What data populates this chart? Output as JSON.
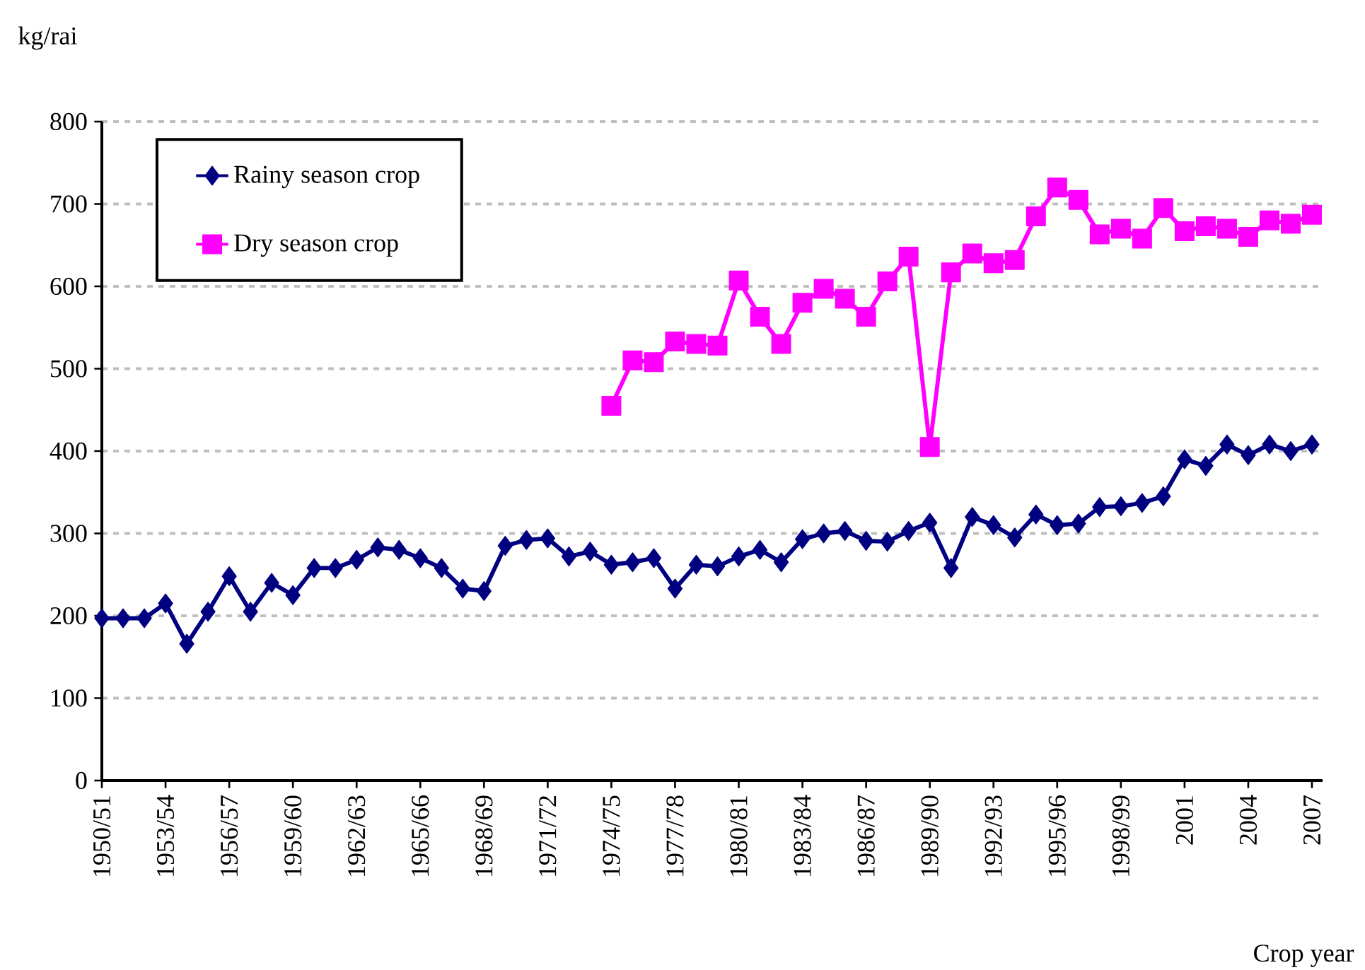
{
  "chart_data": {
    "type": "line",
    "ylabel": "kg/rai",
    "xlabel": "Crop year",
    "categories": [
      "1950/51",
      null,
      null,
      "1953/54",
      null,
      null,
      "1956/57",
      null,
      null,
      "1959/60",
      null,
      null,
      "1962/63",
      null,
      null,
      "1965/66",
      null,
      null,
      "1968/69",
      null,
      null,
      "1971/72",
      null,
      null,
      "1974/75",
      null,
      null,
      "1977/78",
      null,
      null,
      "1980/81",
      null,
      null,
      "1983/84",
      null,
      null,
      "1986/87",
      null,
      null,
      "1989/90",
      null,
      null,
      "1992/93",
      null,
      null,
      "1995/96",
      null,
      null,
      "1998/99",
      null,
      null,
      "2001",
      null,
      null,
      "2004",
      null,
      null,
      "2007"
    ],
    "series": [
      {
        "name": "Rainy season crop",
        "color": "#000080",
        "marker": "diamond",
        "values": [
          197,
          197,
          197,
          215,
          166,
          205,
          248,
          205,
          240,
          225,
          258,
          258,
          268,
          283,
          280,
          270,
          258,
          233,
          230,
          285,
          292,
          294,
          272,
          278,
          262,
          265,
          270,
          233,
          262,
          260,
          272,
          280,
          265,
          293,
          300,
          303,
          291,
          290,
          303,
          313,
          258,
          320,
          310,
          295,
          323,
          310,
          312,
          332,
          333,
          337,
          345,
          390,
          382,
          408,
          395,
          408,
          400,
          408
        ]
      },
      {
        "name": "Dry season crop",
        "color": "#ff00ff",
        "marker": "square",
        "values": [
          null,
          null,
          null,
          null,
          null,
          null,
          null,
          null,
          null,
          null,
          null,
          null,
          null,
          null,
          null,
          null,
          null,
          null,
          null,
          null,
          null,
          null,
          null,
          null,
          455,
          510,
          508,
          533,
          530,
          528,
          607,
          563,
          530,
          580,
          597,
          585,
          563,
          606,
          636,
          405,
          617,
          640,
          628,
          632,
          685,
          720,
          705,
          663,
          670,
          658,
          695,
          667,
          673,
          670,
          660,
          680,
          676,
          687
        ]
      }
    ],
    "ylim": [
      0,
      800
    ],
    "yticks": [
      0,
      100,
      200,
      300,
      400,
      500,
      600,
      700,
      800
    ],
    "grid": "y",
    "legend": "top left"
  }
}
